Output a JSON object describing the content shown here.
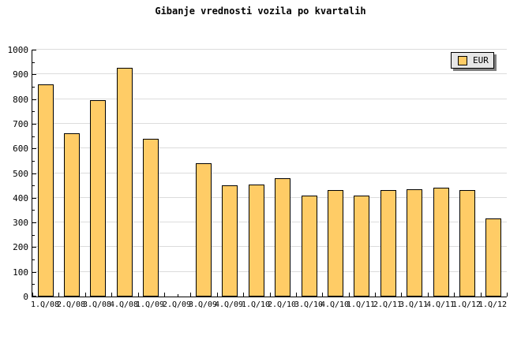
{
  "title": "Gibanje vrednosti vozila po kvartalih",
  "legend": {
    "label": "EUR",
    "position": "top-right"
  },
  "colors": {
    "bar_fill": "#ffcc66",
    "bar_border": "#000000",
    "grid": "#dcdcdc",
    "axis": "#000000",
    "legend_bg": "#e6e6e6",
    "legend_shadow": "#7f7f7f",
    "background": "#ffffff"
  },
  "chart_data": {
    "type": "bar",
    "title": "Gibanje vrednosti vozila po kvartalih",
    "categories": [
      "1.Q/08",
      "2.Q/08",
      "3.Q/08",
      "4.Q/08",
      "1.Q/09",
      "2.Q/09",
      "3.Q/09",
      "4.Q/09",
      "1.Q/10",
      "2.Q/10",
      "3.Q/10",
      "4.Q/10",
      "1.Q/11",
      "2.Q/11",
      "3.Q/11",
      "4.Q/11",
      "1.Q/12",
      "1.Q/12"
    ],
    "series": [
      {
        "name": "EUR",
        "values": [
          860,
          660,
          795,
          925,
          640,
          0,
          540,
          450,
          455,
          480,
          410,
          430,
          410,
          430,
          435,
          440,
          430,
          315
        ]
      }
    ],
    "xlabel": "",
    "ylabel": "",
    "ylim": [
      0,
      1000
    ],
    "ytick_step": 100,
    "ytick_minor_step": 50,
    "ytick_labels": [
      "0",
      "100",
      "200",
      "300",
      "400",
      "500",
      "600",
      "700",
      "800",
      "900",
      "1000"
    ],
    "grid": true,
    "legend_position": "top-right"
  }
}
